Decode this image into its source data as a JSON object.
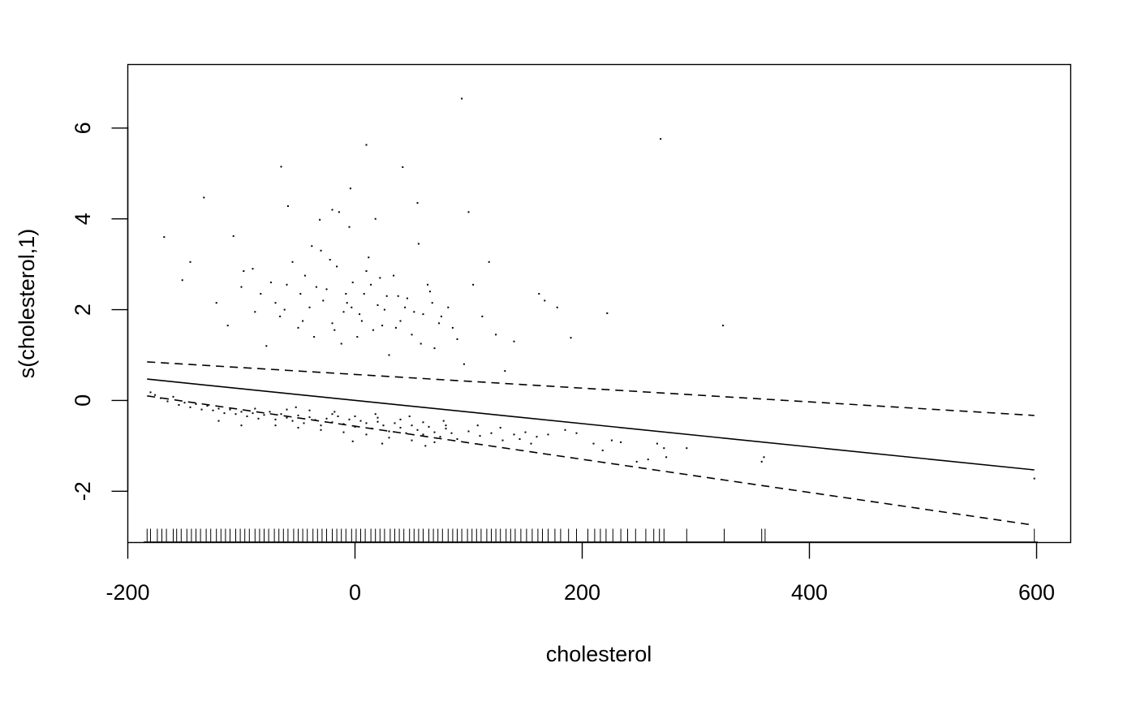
{
  "chart_data": {
    "type": "scatter",
    "title": "",
    "xlabel": "cholesterol",
    "ylabel": "s(cholesterol,1)",
    "xlim": [
      -200,
      630
    ],
    "ylim": [
      -3.13,
      7.4
    ],
    "x_ticks": [
      -200,
      0,
      200,
      400,
      600
    ],
    "y_ticks": [
      -2,
      0,
      2,
      4,
      6
    ],
    "x_tick_labels": [
      "-200",
      "0",
      "200",
      "400",
      "600"
    ],
    "y_tick_labels": [
      "-2",
      "0",
      "2",
      "4",
      "6"
    ],
    "grid": false,
    "fit_line": {
      "name": "smooth estimate",
      "x": [
        -183,
        598
      ],
      "y": [
        0.47,
        -1.53
      ]
    },
    "upper_band": {
      "name": "upper confidence bound",
      "x": [
        -183,
        598
      ],
      "y": [
        0.85,
        -0.33
      ]
    },
    "lower_band": {
      "name": "lower confidence bound",
      "x": [
        -183,
        598
      ],
      "y": [
        0.1,
        -2.75
      ]
    },
    "residual_points": [
      [
        94,
        6.65
      ],
      [
        10,
        5.63
      ],
      [
        269,
        5.76
      ],
      [
        -65,
        5.15
      ],
      [
        42,
        5.14
      ],
      [
        -133,
        4.47
      ],
      [
        -4,
        4.67
      ],
      [
        -59,
        4.28
      ],
      [
        55,
        4.35
      ],
      [
        -20,
        4.2
      ],
      [
        -14,
        4.15
      ],
      [
        100,
        4.15
      ],
      [
        18,
        4.0
      ],
      [
        -31,
        3.98
      ],
      [
        -5,
        3.82
      ],
      [
        -168,
        3.6
      ],
      [
        -107,
        3.62
      ],
      [
        -145,
        3.05
      ],
      [
        -152,
        2.65
      ],
      [
        -122,
        2.15
      ],
      [
        -112,
        1.65
      ],
      [
        -100,
        2.5
      ],
      [
        -98,
        2.85
      ],
      [
        -88,
        1.95
      ],
      [
        -83,
        2.35
      ],
      [
        -78,
        1.2
      ],
      [
        -70,
        2.15
      ],
      [
        -66,
        1.85
      ],
      [
        -60,
        2.55
      ],
      [
        -55,
        3.05
      ],
      [
        -50,
        1.6
      ],
      [
        -44,
        2.75
      ],
      [
        -40,
        2.05
      ],
      [
        -36,
        1.4
      ],
      [
        -30,
        3.3
      ],
      [
        -25,
        2.45
      ],
      [
        -20,
        1.7
      ],
      [
        -16,
        2.95
      ],
      [
        -12,
        1.25
      ],
      [
        -7,
        2.15
      ],
      [
        -2,
        2.6
      ],
      [
        4,
        1.9
      ],
      [
        8,
        2.35
      ],
      [
        12,
        3.15
      ],
      [
        16,
        1.55
      ],
      [
        22,
        2.7
      ],
      [
        26,
        2.0
      ],
      [
        30,
        1.0
      ],
      [
        34,
        2.75
      ],
      [
        40,
        1.75
      ],
      [
        46,
        2.25
      ],
      [
        50,
        1.45
      ],
      [
        56,
        3.45
      ],
      [
        60,
        1.9
      ],
      [
        66,
        2.4
      ],
      [
        70,
        1.15
      ],
      [
        76,
        1.85
      ],
      [
        82,
        2.05
      ],
      [
        90,
        1.35
      ],
      [
        96,
        0.8
      ],
      [
        104,
        2.55
      ],
      [
        112,
        1.85
      ],
      [
        118,
        3.05
      ],
      [
        124,
        1.45
      ],
      [
        132,
        0.65
      ],
      [
        140,
        1.3
      ],
      [
        162,
        2.35
      ],
      [
        167,
        2.2
      ],
      [
        178,
        2.05
      ],
      [
        190,
        1.38
      ],
      [
        222,
        1.92
      ],
      [
        324,
        1.65
      ],
      [
        -90,
        2.9
      ],
      [
        -62,
        2.0
      ],
      [
        -48,
        2.35
      ],
      [
        -28,
        2.2
      ],
      [
        -10,
        1.95
      ],
      [
        6,
        1.75
      ],
      [
        20,
        2.1
      ],
      [
        36,
        1.6
      ],
      [
        64,
        2.55
      ],
      [
        -38,
        3.4
      ],
      [
        -22,
        3.1
      ],
      [
        -8,
        2.35
      ],
      [
        2,
        1.4
      ],
      [
        14,
        2.55
      ],
      [
        28,
        2.3
      ],
      [
        44,
        2.05
      ],
      [
        58,
        1.25
      ],
      [
        74,
        1.7
      ],
      [
        -74,
        2.6
      ],
      [
        -46,
        1.75
      ],
      [
        -34,
        2.5
      ],
      [
        -18,
        1.55
      ],
      [
        -3,
        2.05
      ],
      [
        10,
        2.85
      ],
      [
        24,
        1.65
      ],
      [
        38,
        2.3
      ],
      [
        52,
        1.95
      ],
      [
        68,
        2.15
      ],
      [
        86,
        1.6
      ],
      [
        -180,
        0.18
      ],
      [
        -176,
        0.12
      ],
      [
        -171,
        0.05
      ],
      [
        -165,
        -0.02
      ],
      [
        -160,
        0.08
      ],
      [
        -155,
        -0.1
      ],
      [
        -150,
        -0.05
      ],
      [
        -145,
        -0.15
      ],
      [
        -140,
        -0.08
      ],
      [
        -135,
        -0.2
      ],
      [
        -130,
        -0.12
      ],
      [
        -125,
        -0.22
      ],
      [
        -120,
        -0.18
      ],
      [
        -115,
        -0.28
      ],
      [
        -110,
        -0.2
      ],
      [
        -105,
        -0.3
      ],
      [
        -100,
        -0.25
      ],
      [
        -95,
        -0.35
      ],
      [
        -90,
        -0.28
      ],
      [
        -85,
        -0.4
      ],
      [
        -80,
        -0.32
      ],
      [
        -75,
        -0.25
      ],
      [
        -70,
        -0.42
      ],
      [
        -65,
        -0.3
      ],
      [
        -60,
        -0.38
      ],
      [
        -55,
        -0.45
      ],
      [
        -50,
        -0.33
      ],
      [
        -45,
        -0.5
      ],
      [
        -40,
        -0.37
      ],
      [
        -35,
        -0.43
      ],
      [
        -30,
        -0.55
      ],
      [
        -25,
        -0.4
      ],
      [
        -20,
        -0.48
      ],
      [
        -15,
        -0.35
      ],
      [
        -10,
        -0.52
      ],
      [
        -5,
        -0.42
      ],
      [
        0,
        -0.58
      ],
      [
        5,
        -0.45
      ],
      [
        10,
        -0.5
      ],
      [
        15,
        -0.62
      ],
      [
        20,
        -0.47
      ],
      [
        25,
        -0.55
      ],
      [
        30,
        -0.68
      ],
      [
        35,
        -0.5
      ],
      [
        40,
        -0.6
      ],
      [
        45,
        -0.72
      ],
      [
        50,
        -0.55
      ],
      [
        55,
        -0.65
      ],
      [
        60,
        -0.75
      ],
      [
        65,
        -0.58
      ],
      [
        70,
        -0.7
      ],
      [
        75,
        -0.8
      ],
      [
        80,
        -0.62
      ],
      [
        85,
        -0.72
      ],
      [
        90,
        -0.85
      ],
      [
        100,
        -0.68
      ],
      [
        110,
        -0.78
      ],
      [
        120,
        -0.72
      ],
      [
        130,
        -0.88
      ],
      [
        140,
        -0.75
      ],
      [
        150,
        -0.7
      ],
      [
        160,
        -0.8
      ],
      [
        170,
        -0.75
      ],
      [
        185,
        -0.65
      ],
      [
        195,
        -0.72
      ],
      [
        210,
        -0.95
      ],
      [
        218,
        -1.1
      ],
      [
        226,
        -0.88
      ],
      [
        234,
        -0.92
      ],
      [
        248,
        -1.35
      ],
      [
        258,
        -1.3
      ],
      [
        266,
        -0.95
      ],
      [
        272,
        -1.05
      ],
      [
        274,
        -1.25
      ],
      [
        292,
        -1.05
      ],
      [
        358,
        -1.35
      ],
      [
        360,
        -1.25
      ],
      [
        598,
        -1.72
      ],
      [
        -60,
        -0.2
      ],
      [
        -40,
        -0.22
      ],
      [
        -20,
        -0.3
      ],
      [
        0,
        -0.35
      ],
      [
        20,
        -0.38
      ],
      [
        40,
        -0.42
      ],
      [
        60,
        -0.48
      ],
      [
        80,
        -0.55
      ],
      [
        -70,
        -0.55
      ],
      [
        -50,
        -0.6
      ],
      [
        -30,
        -0.65
      ],
      [
        -10,
        -0.7
      ],
      [
        10,
        -0.75
      ],
      [
        30,
        -0.82
      ],
      [
        50,
        -0.88
      ],
      [
        70,
        -0.92
      ],
      [
        -100,
        -0.55
      ],
      [
        -120,
        -0.45
      ],
      [
        -88,
        -0.18
      ],
      [
        -52,
        -0.15
      ],
      [
        -18,
        -0.25
      ],
      [
        18,
        -0.3
      ],
      [
        48,
        -0.35
      ],
      [
        78,
        -0.45
      ],
      [
        108,
        -0.55
      ],
      [
        128,
        -0.6
      ],
      [
        145,
        -0.85
      ],
      [
        155,
        -0.95
      ],
      [
        -2,
        -0.9
      ],
      [
        24,
        -0.95
      ],
      [
        62,
        -1.0
      ]
    ],
    "rug_x": [
      -183,
      -180,
      -174,
      -170,
      -166,
      -160,
      -157,
      -153,
      -148,
      -144,
      -140,
      -136,
      -131,
      -127,
      -122,
      -118,
      -114,
      -110,
      -105,
      -101,
      -97,
      -93,
      -88,
      -84,
      -80,
      -76,
      -71,
      -67,
      -63,
      -59,
      -54,
      -50,
      -46,
      -42,
      -37,
      -33,
      -29,
      -25,
      -20,
      -16,
      -12,
      -8,
      -3,
      1,
      5,
      9,
      14,
      18,
      22,
      26,
      31,
      35,
      39,
      43,
      48,
      52,
      56,
      60,
      65,
      69,
      73,
      77,
      82,
      86,
      90,
      94,
      99,
      103,
      107,
      111,
      116,
      120,
      124,
      128,
      133,
      137,
      141,
      146,
      151,
      156,
      161,
      165,
      170,
      176,
      181,
      188,
      195,
      205,
      211,
      216,
      221,
      227,
      234,
      240,
      247,
      256,
      263,
      268,
      272,
      292,
      325,
      358,
      361,
      598
    ]
  }
}
